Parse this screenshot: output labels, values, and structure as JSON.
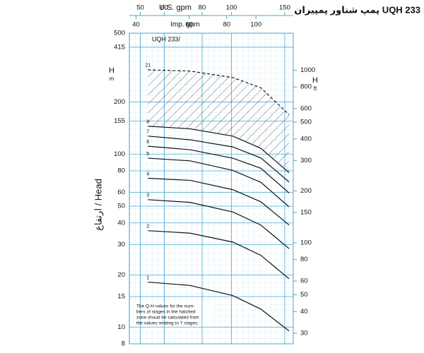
{
  "chart_data": {
    "type": "line",
    "title": "پمپ شناور پمپیران UQH 233",
    "subtitle": "UQH 233/",
    "x_label": "U.S. gpm",
    "x2_label": "Imp. gpm",
    "y_label": "ارتفاع / Head",
    "y_unit_symbol": "H",
    "y_unit": "m",
    "y2_unit_symbol": "H",
    "y2_unit": "ft",
    "note": [
      "The Q-H values for the num-",
      "bers of stages in the hatched",
      "zone shoud be calculated from",
      "the values relating to 7 stages."
    ],
    "log_x": true,
    "log_y": true,
    "grid": true,
    "xlim": [
      46,
      160
    ],
    "xticks": [
      50,
      60,
      80,
      100,
      150
    ],
    "x2lim": [
      38,
      133
    ],
    "x2ticks": [
      40,
      60,
      80,
      100
    ],
    "ylim": [
      8,
      500
    ],
    "yticks": [
      500,
      415,
      200,
      155,
      100,
      80,
      60,
      50,
      40,
      30,
      20,
      15,
      10,
      8
    ],
    "y2lim": [
      26,
      1640
    ],
    "y2ticks": [
      1000,
      800,
      600,
      500,
      400,
      300,
      200,
      150,
      100,
      80,
      60,
      50,
      40,
      30
    ],
    "x": [
      53,
      73,
      101,
      125,
      155
    ],
    "series": [
      {
        "name": "1",
        "color": "#111111",
        "values": [
          18.2,
          17.4,
          15.2,
          12.7,
          9.5
        ]
      },
      {
        "name": "2",
        "color": "#111111",
        "values": [
          36.1,
          34.9,
          31.0,
          26.0,
          19.0
        ]
      },
      {
        "name": "3",
        "color": "#111111",
        "values": [
          54.5,
          52.6,
          46.3,
          38.9,
          28.4
        ]
      },
      {
        "name": "4",
        "color": "#111111",
        "values": [
          72.5,
          70.5,
          62.3,
          53.0,
          38.9
        ]
      },
      {
        "name": "5",
        "color": "#111111",
        "values": [
          94.7,
          91.4,
          80.5,
          68.7,
          49.5
        ]
      },
      {
        "name": "6",
        "color": "#111111",
        "values": [
          111,
          106,
          94.7,
          82.8,
          59.6
        ]
      },
      {
        "name": "7",
        "color": "#111111",
        "values": [
          127,
          121,
          110,
          95,
          69
        ]
      },
      {
        "name": "8",
        "color": "#111111",
        "values": [
          145,
          140,
          127,
          108,
          78
        ]
      },
      {
        "name": "21",
        "color": "#111111",
        "dashed": true,
        "values": [
          307,
          302,
          277,
          242,
          169
        ]
      }
    ],
    "hatch_between": [
      7,
      8
    ]
  }
}
